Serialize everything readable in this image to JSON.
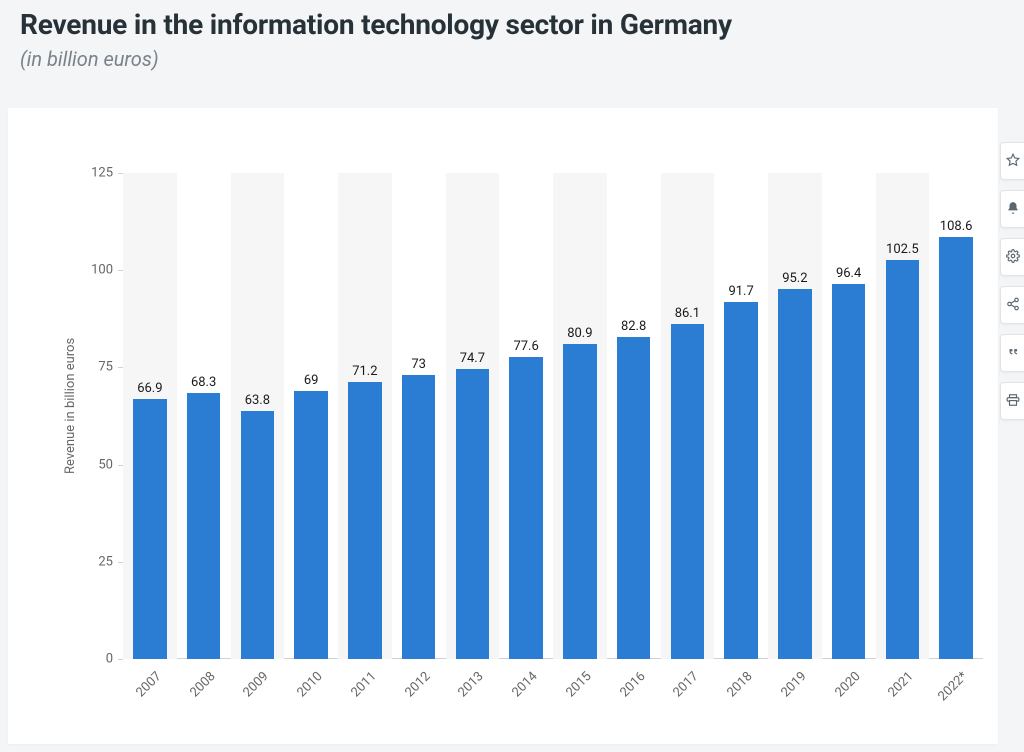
{
  "header": {
    "title": "Revenue in the information technology sector in Germany",
    "subtitle": "(in billion euros)"
  },
  "chart": {
    "type": "bar",
    "ylabel": "Revenue in billion euros",
    "ylim": [
      0,
      125
    ],
    "ytick_step": 25,
    "yticks": [
      0,
      25,
      50,
      75,
      100,
      125
    ],
    "categories": [
      "2007",
      "2008",
      "2009",
      "2010",
      "2011",
      "2012",
      "2013",
      "2014",
      "2015",
      "2016",
      "2017",
      "2018",
      "2019",
      "2020",
      "2021",
      "2022*"
    ],
    "values": [
      66.9,
      68.3,
      63.8,
      69,
      71.2,
      73,
      74.7,
      77.6,
      80.9,
      82.8,
      86.1,
      91.7,
      95.2,
      96.4,
      102.5,
      108.6
    ],
    "value_labels": [
      "66.9",
      "68.3",
      "63.8",
      "69",
      "71.2",
      "73",
      "74.7",
      "77.6",
      "80.9",
      "82.8",
      "86.1",
      "91.7",
      "95.2",
      "96.4",
      "102.5",
      "108.6"
    ],
    "bar_color": "#2b7cd3",
    "stripe_color": "#f6f6f6",
    "background_color": "#ffffff",
    "baseline_color": "#cfd3d8",
    "label_fontsize": 13,
    "title_fontsize": 28,
    "bar_width_ratio": 0.62,
    "xtick_rotation_deg": -45
  },
  "side_buttons": [
    {
      "name": "favorite-button",
      "icon": "star-icon"
    },
    {
      "name": "alert-button",
      "icon": "bell-icon"
    },
    {
      "name": "settings-button",
      "icon": "gear-icon"
    },
    {
      "name": "share-button",
      "icon": "share-icon"
    },
    {
      "name": "cite-button",
      "icon": "quote-icon"
    },
    {
      "name": "print-button",
      "icon": "print-icon"
    }
  ]
}
